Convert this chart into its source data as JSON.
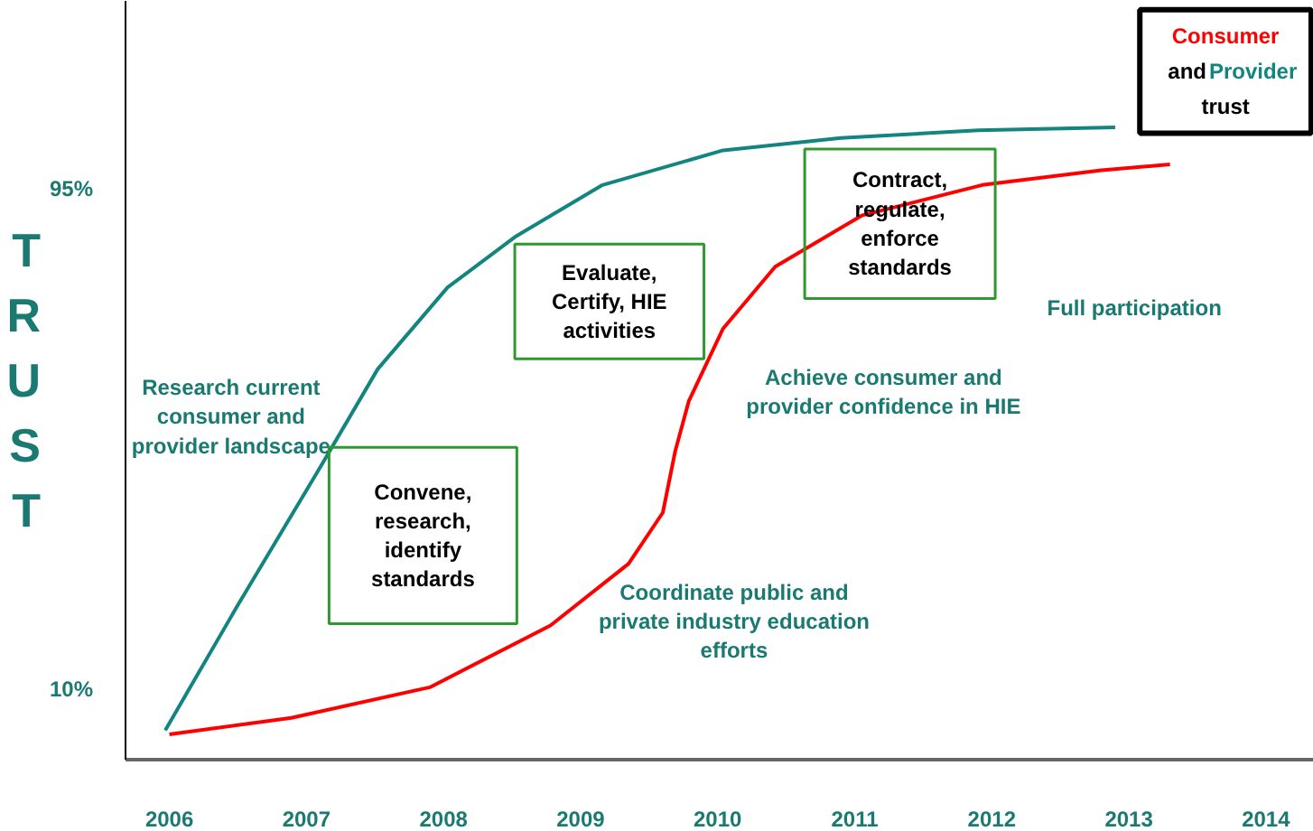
{
  "chart_data": {
    "type": "line",
    "ylabel": "TRUST",
    "legend": "top right",
    "grid": false,
    "marker": "none",
    "line_style": "solid",
    "xlim": [
      2005.68,
      2014.35
    ],
    "xticks": [
      2006,
      2007,
      2008,
      2009,
      2010,
      2011,
      2012,
      2013,
      2014
    ],
    "ylim": [
      -2,
      127
    ],
    "yticks": [
      {
        "value": 95,
        "label": "95%"
      },
      {
        "value": 10,
        "label": "10%"
      }
    ],
    "series": [
      {
        "name": "Consumer",
        "color": "#ff0000",
        "x": [
          2006.0,
          2006.89,
          2007.9,
          2008.78,
          2009.35,
          2009.6,
          2009.69,
          2009.79,
          2010.04,
          2010.42,
          2011.05,
          2011.93,
          2012.8,
          2013.3
        ],
        "values": [
          2.3,
          5.1,
          10.3,
          20.8,
          31.3,
          40,
          50.4,
          59,
          71.3,
          81.8,
          90.5,
          95.7,
          98.2,
          99.2
        ]
      },
      {
        "name": "Provider",
        "color": "#138580",
        "x": [
          2005.97,
          2006.5,
          2007.08,
          2007.52,
          2008.03,
          2008.53,
          2009.16,
          2010.04,
          2010.9,
          2011.9,
          2012.9
        ],
        "values": [
          3.0,
          24.3,
          46.9,
          64.4,
          78.3,
          87,
          95.7,
          101.6,
          103.7,
          105,
          105.5
        ]
      }
    ],
    "annotations": [
      "Research current\nconsumer and\nprovider landscape",
      "Convene,\nresearch,\nidentify\nstandards",
      "Evaluate,\nCertify, HIE\nactivities",
      "Contract,\nregulate,\nenforce\nstandards",
      "Full participation",
      "Achieve consumer and\nprovider confidence in HIE",
      "Coordinate public and\nprivate industry education\nefforts",
      "and",
      "trust"
    ]
  }
}
